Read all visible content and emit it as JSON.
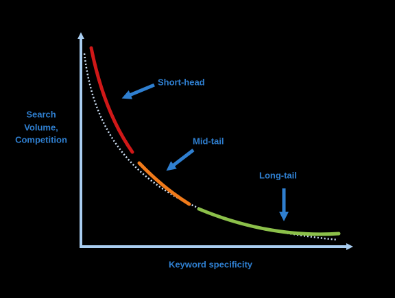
{
  "axes": {
    "y_label": [
      "Search",
      "Volume,",
      "Competition"
    ],
    "x_label": "Keyword specificity"
  },
  "segments": [
    {
      "label": "Short-head"
    },
    {
      "label": "Mid-tail"
    },
    {
      "label": "Long-tail"
    }
  ]
}
